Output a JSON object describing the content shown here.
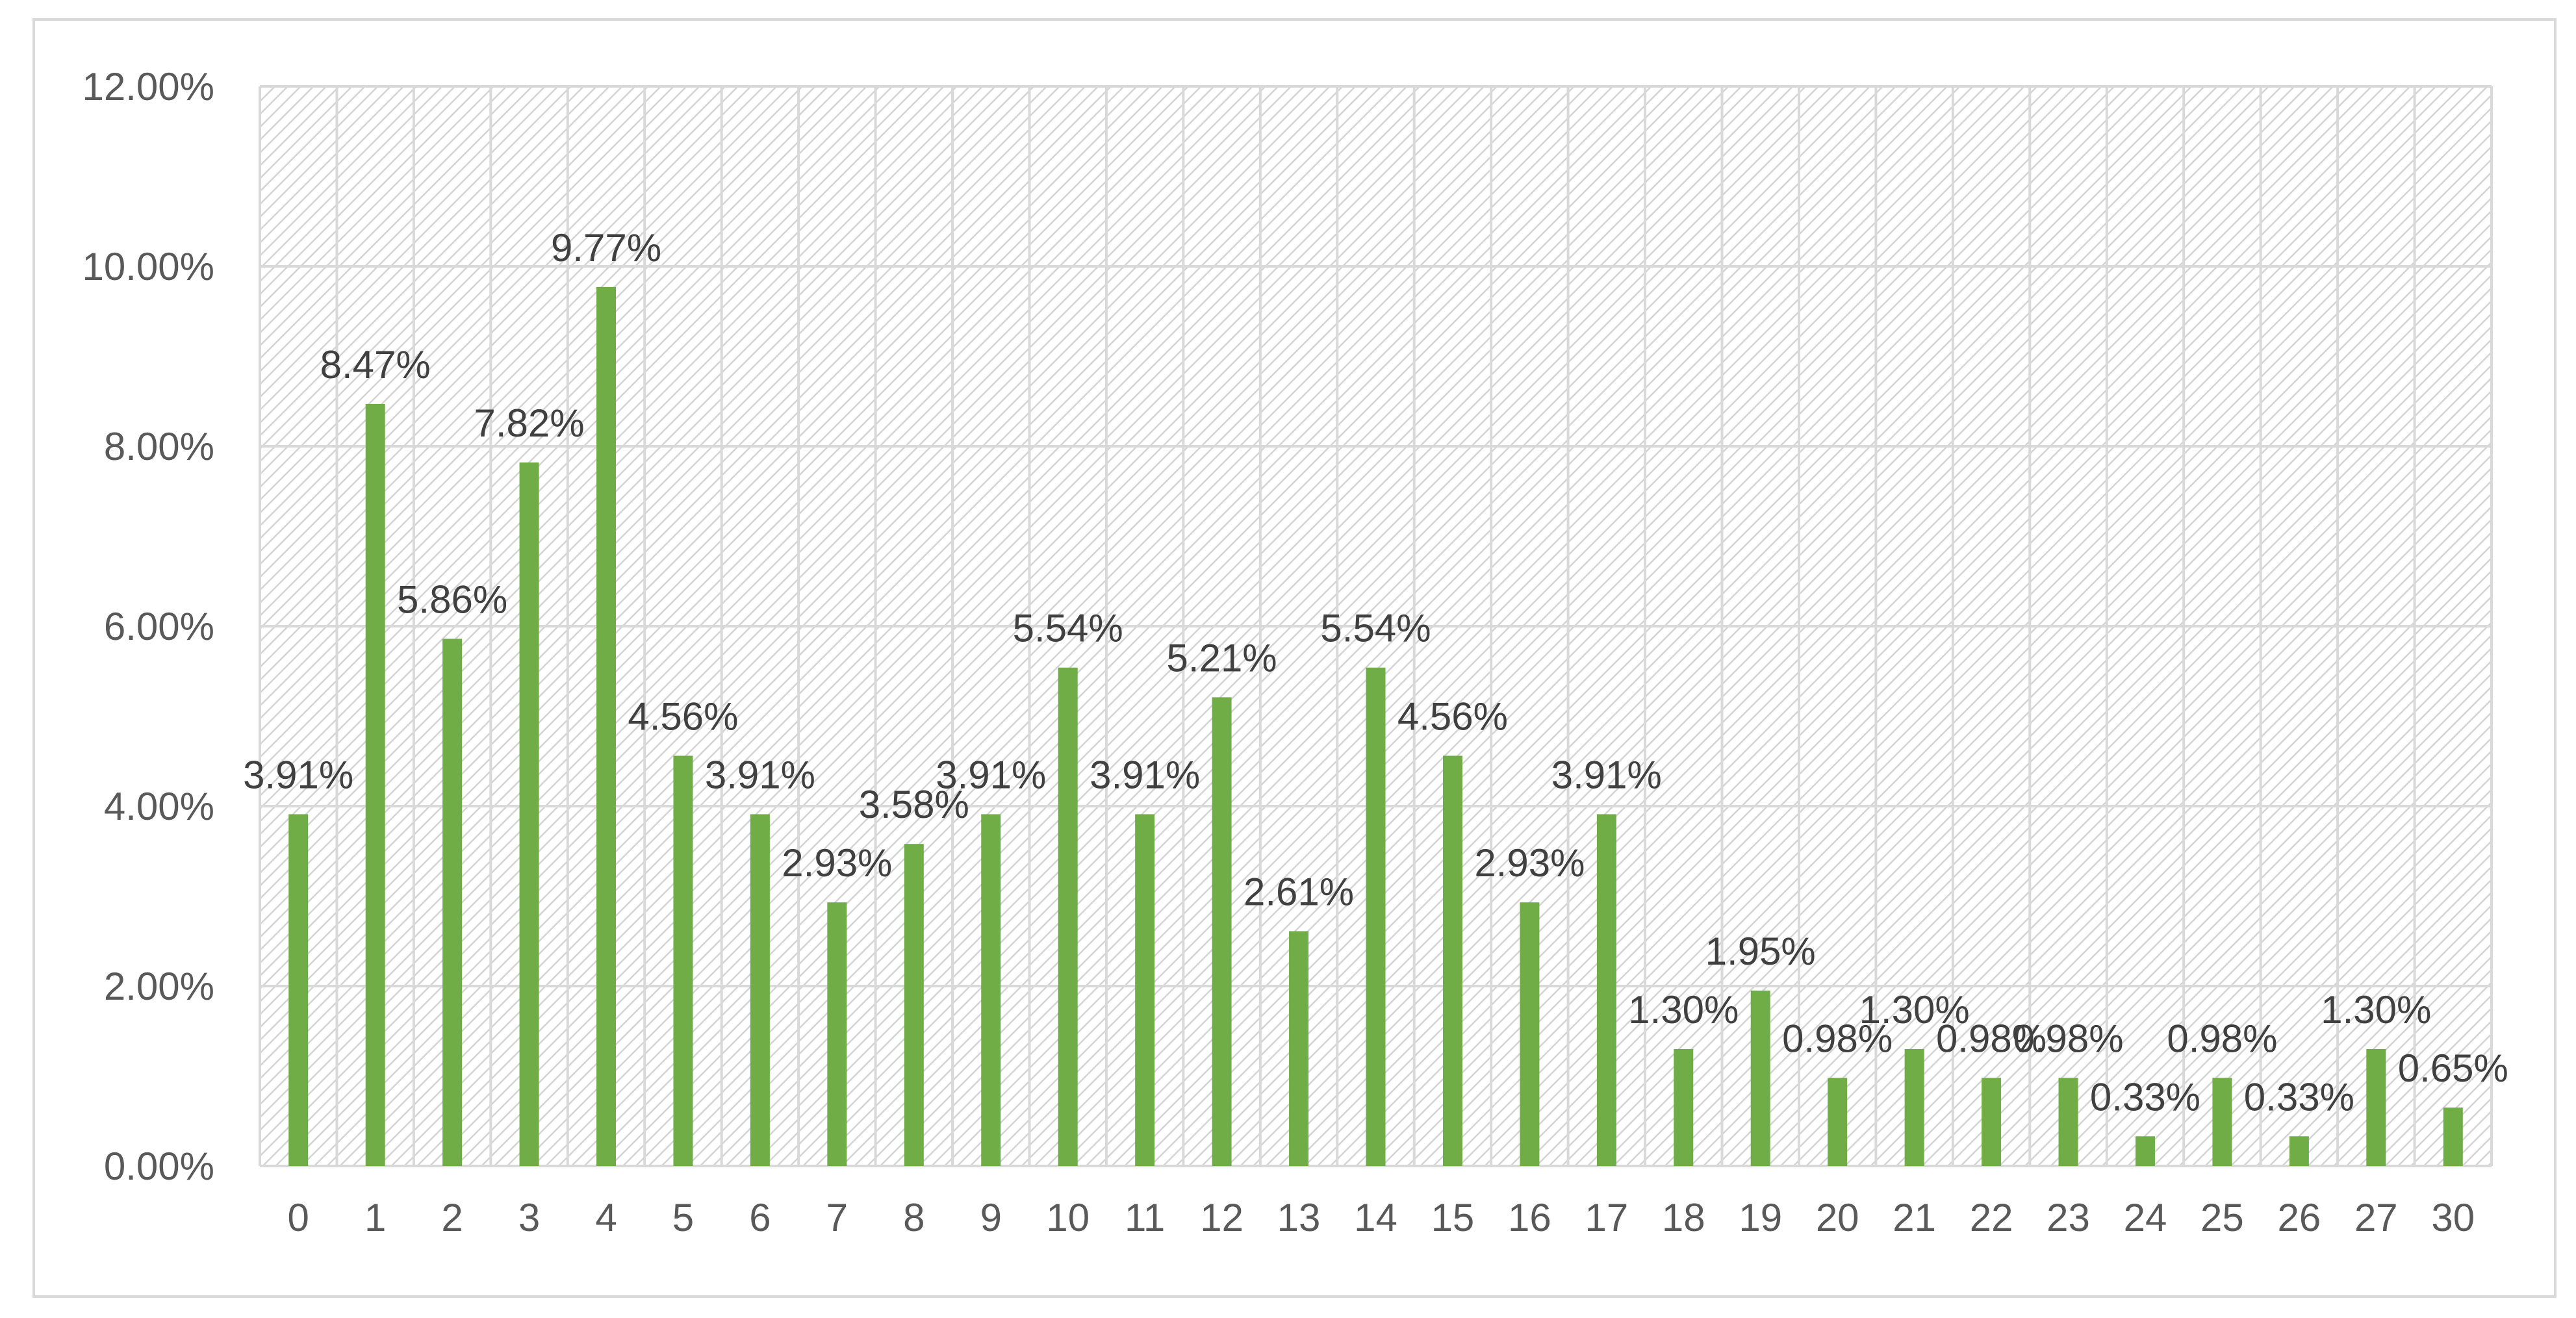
{
  "chart_data": {
    "type": "bar",
    "title": "",
    "xlabel": "",
    "ylabel": "",
    "categories": [
      "0",
      "1",
      "2",
      "3",
      "4",
      "5",
      "6",
      "7",
      "8",
      "9",
      "10",
      "11",
      "12",
      "13",
      "14",
      "15",
      "16",
      "17",
      "18",
      "19",
      "20",
      "21",
      "22",
      "23",
      "24",
      "25",
      "26",
      "27",
      "30"
    ],
    "values": [
      3.91,
      8.47,
      5.86,
      7.82,
      9.77,
      4.56,
      3.91,
      2.93,
      3.58,
      3.91,
      5.54,
      3.91,
      5.21,
      2.61,
      5.54,
      4.56,
      2.93,
      3.91,
      1.3,
      1.95,
      0.98,
      1.3,
      0.98,
      0.98,
      0.33,
      0.98,
      0.33,
      1.3,
      0.65
    ],
    "data_labels": [
      "3.91%",
      "8.47%",
      "5.86%",
      "7.82%",
      "9.77%",
      "4.56%",
      "3.91%",
      "2.93%",
      "3.58%",
      "3.91%",
      "5.54%",
      "3.91%",
      "5.21%",
      "2.61%",
      "5.54%",
      "4.56%",
      "2.93%",
      "3.91%",
      "1.30%",
      "1.95%",
      "0.98%",
      "1.30%",
      "0.98%",
      "0.98%",
      "0.33%",
      "0.98%",
      "0.33%",
      "1.30%",
      "0.65%"
    ],
    "ylim": [
      0,
      12
    ],
    "y_ticks": [
      0,
      2,
      4,
      6,
      8,
      10,
      12
    ],
    "y_tick_labels": [
      "0.00%",
      "2.00%",
      "4.00%",
      "6.00%",
      "8.00%",
      "10.00%",
      "12.00%"
    ],
    "grid": true,
    "plot_background": "hatched-light-gray",
    "colors": {
      "bar": "#70ad47",
      "grid": "#d9d9d9",
      "hatch": "#d4d4d4",
      "text": "#595959",
      "frame": "#d9d9d9"
    }
  }
}
